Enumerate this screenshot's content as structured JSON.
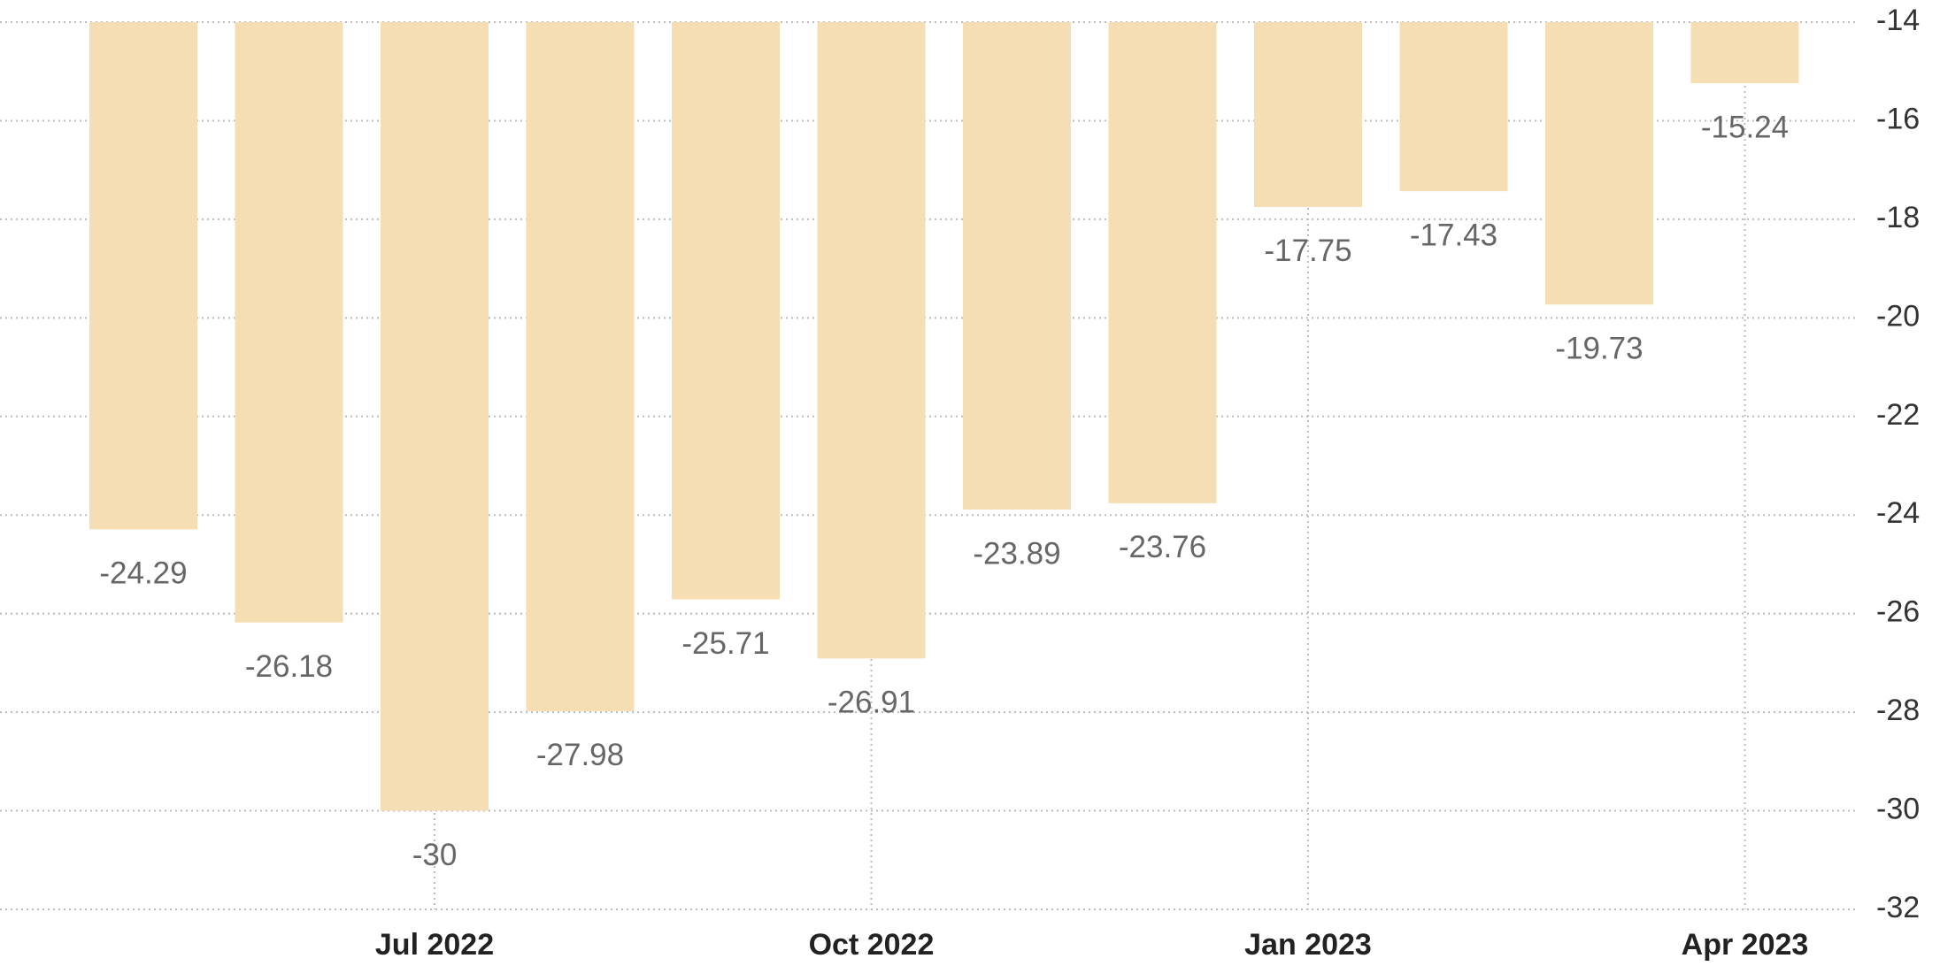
{
  "chart_data": {
    "type": "bar",
    "categories": [
      null,
      null,
      "Jul 2022",
      null,
      null,
      "Oct 2022",
      null,
      null,
      "Jan 2023",
      null,
      null,
      "Apr 2023"
    ],
    "values": [
      -24.29,
      -26.18,
      -30,
      -27.98,
      -25.71,
      -26.91,
      -23.89,
      -23.76,
      -17.75,
      -17.43,
      -19.73,
      -15.24
    ],
    "color": "#f5deb3",
    "ylim": [
      -32,
      -14
    ],
    "yticks": [
      -14,
      -16,
      -18,
      -20,
      -22,
      -24,
      -26,
      -28,
      -30,
      -32
    ],
    "grid": true,
    "y_axis_side": "right"
  }
}
